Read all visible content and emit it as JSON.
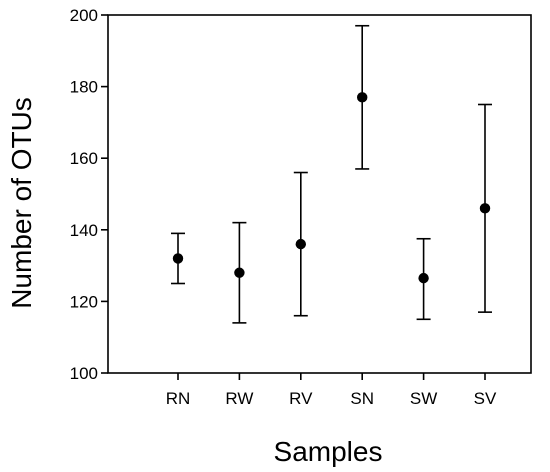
{
  "chart_data": {
    "type": "scatter",
    "title": "",
    "xlabel": "Samples",
    "ylabel": "Number of OTUs",
    "categories": [
      "RN",
      "RW",
      "RV",
      "SN",
      "SW",
      "SV"
    ],
    "series": [
      {
        "values": [
          132,
          128,
          136,
          177,
          126.5,
          146
        ],
        "error_low": [
          125,
          114,
          116,
          157,
          115,
          117
        ],
        "error_high": [
          139,
          142,
          156,
          197,
          137.5,
          175
        ]
      }
    ],
    "ylim": [
      100,
      200
    ],
    "yticks": [
      100,
      120,
      140,
      160,
      180,
      200
    ],
    "grid": false,
    "legend": "none",
    "colors": {
      "marker": "#000000",
      "axis": "#000000"
    }
  }
}
